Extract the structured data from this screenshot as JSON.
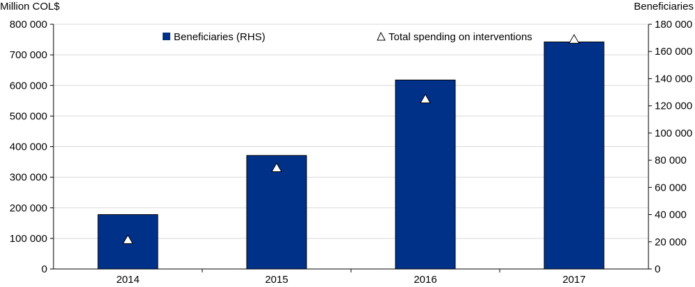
{
  "chart_data": {
    "type": "bar",
    "categories": [
      "2014",
      "2015",
      "2016",
      "2017"
    ],
    "series": [
      {
        "name": "Beneficiaries (RHS)",
        "type": "bar",
        "axis": "right",
        "values": [
          40000,
          83500,
          139000,
          167000
        ],
        "color": "#003189"
      },
      {
        "name": "Total spending on interventions",
        "type": "marker",
        "marker": "triangle",
        "axis": "left",
        "values": [
          95000,
          330000,
          555000,
          750000
        ],
        "color": "#ffffff"
      }
    ],
    "ylabel_left": "Million COL$",
    "ylabel_right": "Beneficiaries",
    "ylim_left": [
      0,
      800000
    ],
    "ylim_right": [
      0,
      180000
    ],
    "yticks_left": [
      0,
      100000,
      200000,
      300000,
      400000,
      500000,
      600000,
      700000,
      800000
    ],
    "yticks_right": [
      0,
      20000,
      40000,
      60000,
      80000,
      100000,
      120000,
      140000,
      160000,
      180000
    ],
    "yticklabels_left": [
      "0",
      "100 000",
      "200 000",
      "300 000",
      "400 000",
      "500 000",
      "600 000",
      "700 000",
      "800 000"
    ],
    "yticklabels_right": [
      "0",
      "20 000",
      "40 000",
      "60 000",
      "80 000",
      "100 000",
      "120 000",
      "140 000",
      "160 000",
      "180 000"
    ],
    "grid": true,
    "legend_position": "top"
  }
}
